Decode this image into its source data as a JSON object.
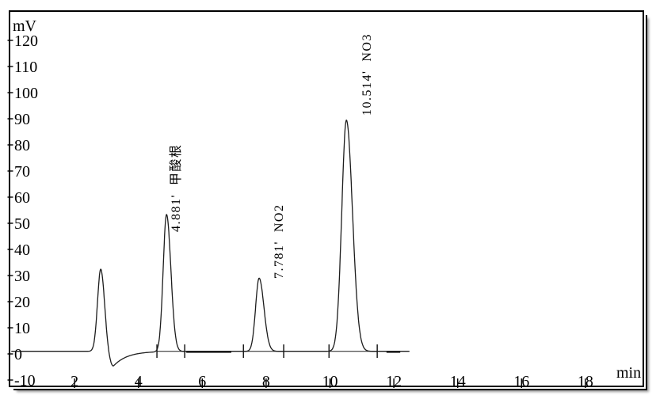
{
  "panel": {
    "background": "#ffffff",
    "frame_border_color": "#000000",
    "frame_shadow_color": "#9a9a9a",
    "text_color": "#000000"
  },
  "chart_data": {
    "type": "line",
    "title": "",
    "xlabel": "min",
    "ylabel": "mV",
    "xlim": [
      0,
      19.3
    ],
    "ylim": [
      -10,
      125
    ],
    "x_ticks": [
      2,
      4,
      6,
      8,
      10,
      12,
      14,
      16,
      18
    ],
    "y_ticks": [
      -10,
      0,
      10,
      20,
      30,
      40,
      50,
      60,
      70,
      80,
      90,
      100,
      110,
      120
    ],
    "grid": false,
    "legend": false,
    "trace_color": "#1c1c1c",
    "baseline_mv": 1,
    "trace_start_min": 0.02,
    "trace_end_min": 12.49,
    "peaks": [
      {
        "rt_min": 2.82,
        "height_mv": 31.5,
        "sigma_left": 0.1,
        "sigma_right": 0.12,
        "label": ""
      },
      {
        "rt_min": 4.881,
        "height_mv": 52.5,
        "sigma_left": 0.105,
        "sigma_right": 0.135,
        "label": "4.881'  甲酸根"
      },
      {
        "rt_min": 7.781,
        "height_mv": 28.0,
        "sigma_left": 0.11,
        "sigma_right": 0.15,
        "label": "7.781'  NO2"
      },
      {
        "rt_min": 10.514,
        "height_mv": 88.5,
        "sigma_left": 0.145,
        "sigma_right": 0.19,
        "label": "10.514'  NO3"
      }
    ],
    "negative_dip": {
      "center_min": 3.21,
      "depth_mv": -5.8,
      "sigma_in": 0.13,
      "recovery_tau_min": 0.42
    },
    "integration_marks_min": [
      4.58,
      5.45,
      7.29,
      8.55,
      9.97,
      11.48
    ],
    "integration_baselines_min": [
      [
        4.58,
        5.45
      ],
      [
        7.29,
        8.55
      ],
      [
        9.97,
        11.48
      ]
    ],
    "bold_baseline_segments_min": [
      [
        5.5,
        6.91
      ],
      [
        11.77,
        12.2
      ]
    ]
  }
}
